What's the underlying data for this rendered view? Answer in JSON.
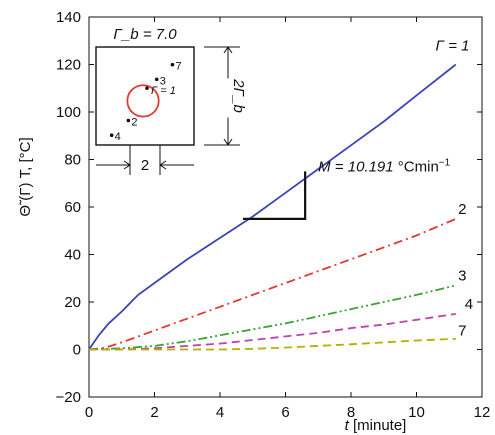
{
  "chart_data": {
    "type": "line",
    "xlabel": "t [minute]",
    "xlabel_var": "t",
    "xlabel_unit": "[minute]",
    "ylabel": "Θ̃ (Γ) T, [°C]",
    "xlim": [
      0,
      12
    ],
    "ylim": [
      -20,
      140
    ],
    "xticks": [
      0,
      2,
      4,
      6,
      8,
      10,
      12
    ],
    "yticks": [
      -20,
      0,
      20,
      40,
      60,
      80,
      100,
      120,
      140
    ],
    "grid": false,
    "series": [
      {
        "name": "Γ = 1",
        "color": "#3b46b0",
        "dash": "solid",
        "x": [
          0,
          0.3,
          0.6,
          1,
          1.5,
          2,
          3,
          4,
          5,
          6,
          7,
          8,
          9,
          10,
          11.2
        ],
        "y": [
          0,
          6,
          11,
          16,
          23,
          28,
          38,
          47,
          56,
          66,
          76,
          86,
          96,
          107,
          120
        ]
      },
      {
        "name": "2",
        "color": "#e53935",
        "dash": "dashdot",
        "x": [
          0,
          0.5,
          1,
          2,
          3,
          4,
          5,
          6,
          7,
          8,
          9,
          10,
          11.2
        ],
        "y": [
          0,
          0.8,
          3,
          8,
          13,
          18,
          23,
          28,
          33,
          38,
          43,
          48,
          55
        ]
      },
      {
        "name": "3",
        "color": "#3aa336",
        "dash": "dashdotdot",
        "x": [
          0,
          1,
          2,
          3,
          4,
          5,
          6,
          7,
          8,
          9,
          10,
          11.2
        ],
        "y": [
          0,
          0.5,
          1.5,
          3.5,
          6,
          8.5,
          11,
          14,
          17,
          20,
          23,
          27
        ]
      },
      {
        "name": "4",
        "color": "#c040b0",
        "dash": "dashed",
        "x": [
          0,
          1,
          2,
          3,
          4,
          5,
          6,
          7,
          8,
          9,
          10,
          11.2
        ],
        "y": [
          0,
          0,
          0.5,
          1.5,
          2.5,
          4,
          5.5,
          7,
          9,
          10.5,
          12.5,
          15
        ]
      },
      {
        "name": "7",
        "color": "#b5b000",
        "dash": "dashed",
        "x": [
          0,
          2,
          4,
          5,
          6,
          7,
          8,
          9,
          10,
          11.2
        ],
        "y": [
          0,
          0,
          0,
          0.3,
          0.8,
          1.5,
          2.2,
          3,
          3.8,
          4.5
        ]
      }
    ],
    "annotations": {
      "slope_label": "M = 10.191",
      "slope_unit": "°Cmin",
      "slope_exp": "−1",
      "slope_triangle": {
        "x1": 4.7,
        "x2": 6.6,
        "y1": 55,
        "y2": 75
      },
      "curve_labels": [
        {
          "text": "Γ = 1",
          "x": 11.1,
          "y": 126
        },
        {
          "text": "2",
          "x": 11.4,
          "y": 57
        },
        {
          "text": "3",
          "x": 11.4,
          "y": 29
        },
        {
          "text": "4",
          "x": 11.6,
          "y": 17
        },
        {
          "text": "7",
          "x": 11.4,
          "y": 6
        }
      ]
    },
    "inset": {
      "title": "Γ_b = 7.0",
      "width_label": "2",
      "height_label": "2Γ_b",
      "circle_label": "Γ = 1",
      "points": [
        {
          "label": "3",
          "fx": 0.62,
          "fy": 0.33
        },
        {
          "label": "7",
          "fx": 0.78,
          "fy": 0.18
        },
        {
          "label": "2",
          "fx": 0.33,
          "fy": 0.75
        },
        {
          "label": "4",
          "fx": 0.16,
          "fy": 0.9
        }
      ],
      "circle_center": [
        0.48,
        0.55
      ],
      "circle_radius": 0.16,
      "circle_color": "#e53935",
      "point_on_circle": [
        0.52,
        0.42
      ]
    }
  }
}
